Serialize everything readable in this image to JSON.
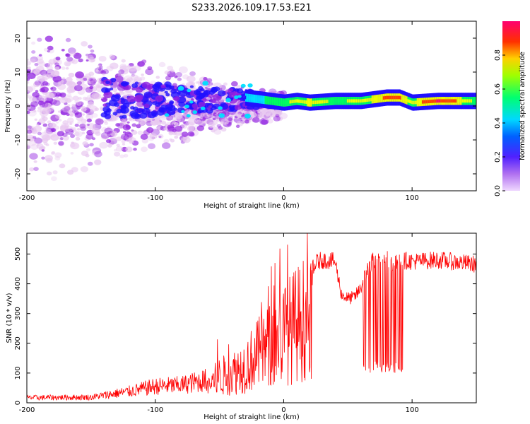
{
  "title": "S233.2026.109.17.53.E21",
  "chart_data": [
    {
      "type": "heatmap",
      "title": "S233.2026.109.17.53.E21",
      "xlabel": "Height of straight line (km)",
      "ylabel": "Frequency (Hz)",
      "xlim": [
        -200,
        150
      ],
      "ylim": [
        -25,
        25
      ],
      "xticks": [
        -200,
        -100,
        0,
        100
      ],
      "xtick_labels": [
        "-200",
        "-100",
        "0",
        "100"
      ],
      "yticks": [
        -20,
        -10,
        0,
        10,
        20
      ],
      "ytick_labels": [
        "-20",
        "-10",
        "0",
        "10",
        "20"
      ],
      "colorbar": {
        "label": "Normalized spectral amplitude",
        "range": [
          0,
          1
        ],
        "ticks": [
          0.0,
          0.2,
          0.4,
          0.6,
          0.8
        ],
        "tick_labels": [
          "0.0",
          "0.2",
          "0.4",
          "0.6",
          "0.8"
        ],
        "colormap": [
          "#e8c8f0",
          "#9020e0",
          "#2010ff",
          "#00e0ff",
          "#00ff60",
          "#f0ff00",
          "#ff4000",
          "#ff0060"
        ]
      },
      "ridge": {
        "description_points_x": [
          -30,
          -20,
          -10,
          0,
          10,
          20,
          40,
          60,
          80,
          90,
          100,
          120,
          150
        ],
        "frequency_hz": [
          2.5,
          2,
          1.5,
          1,
          1.5,
          1,
          1.5,
          1.5,
          2.5,
          2.5,
          1,
          1.5,
          1.5
        ],
        "amplitude": [
          0.35,
          0.45,
          0.55,
          0.6,
          0.7,
          0.75,
          0.6,
          0.7,
          0.8,
          0.8,
          0.7,
          0.95,
          0.6
        ]
      },
      "scatter_region": {
        "x_range": [
          -200,
          -20
        ],
        "spread_hz": [
          25,
          5
        ]
      }
    },
    {
      "type": "line",
      "xlabel": "Height of straight line (km)",
      "ylabel": "SNR (10 * v/v)",
      "xlim": [
        -200,
        150
      ],
      "ylim": [
        0,
        570
      ],
      "xticks": [
        -200,
        -100,
        0,
        100
      ],
      "xtick_labels": [
        "-200",
        "-100",
        "0",
        "100"
      ],
      "yticks": [
        0,
        100,
        200,
        300,
        400,
        500
      ],
      "ytick_labels": [
        "0",
        "100",
        "200",
        "300",
        "400",
        "500"
      ],
      "series": [
        {
          "name": "SNR",
          "color": "#ff0000",
          "envelope_x": [
            -200,
            -150,
            -120,
            -100,
            -80,
            -60,
            -50,
            -40,
            -30,
            -20,
            -10,
            0,
            10,
            20,
            25,
            30,
            40,
            45,
            50,
            55,
            60,
            65,
            70,
            80,
            90,
            100,
            120,
            150
          ],
          "envelope_y": [
            20,
            22,
            45,
            65,
            70,
            90,
            140,
            160,
            200,
            260,
            310,
            370,
            420,
            470,
            490,
            500,
            495,
            380,
            365,
            370,
            400,
            470,
            500,
            505,
            500,
            495,
            500,
            485
          ]
        }
      ]
    }
  ]
}
